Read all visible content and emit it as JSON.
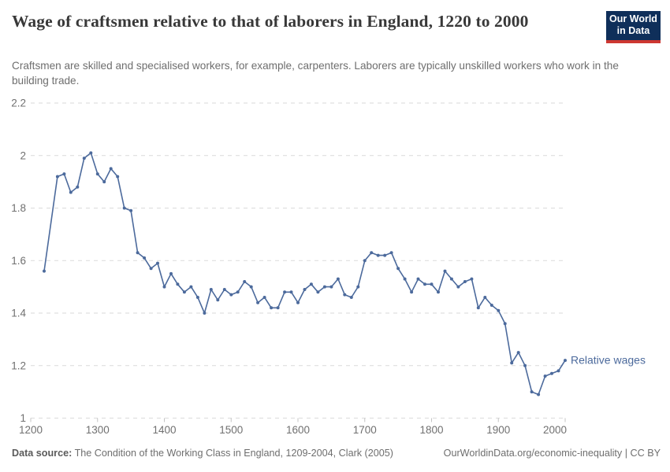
{
  "header": {
    "title": "Wage of craftsmen relative to that of laborers in England, 1220 to 2000",
    "subtitle": "Craftsmen are skilled and specialised workers, for example, carpenters. Laborers are typically unskilled workers who work in the building trade.",
    "logo": {
      "line1": "Our World",
      "line2": "in Data"
    }
  },
  "chart_data": {
    "type": "line",
    "title": "Wage of craftsmen relative to that of laborers in England, 1220 to 2000",
    "series": [
      {
        "name": "Relative wages",
        "x": [
          1220,
          1240,
          1250,
          1260,
          1270,
          1280,
          1290,
          1300,
          1310,
          1320,
          1330,
          1340,
          1350,
          1360,
          1370,
          1380,
          1390,
          1400,
          1410,
          1420,
          1430,
          1440,
          1450,
          1460,
          1470,
          1480,
          1490,
          1500,
          1510,
          1520,
          1530,
          1540,
          1550,
          1560,
          1570,
          1580,
          1590,
          1600,
          1610,
          1620,
          1630,
          1640,
          1650,
          1660,
          1670,
          1680,
          1690,
          1700,
          1710,
          1720,
          1730,
          1740,
          1750,
          1760,
          1770,
          1780,
          1790,
          1800,
          1810,
          1820,
          1830,
          1840,
          1850,
          1860,
          1870,
          1880,
          1890,
          1900,
          1910,
          1920,
          1930,
          1940,
          1950,
          1960,
          1970,
          1980,
          1990,
          2000
        ],
        "values": [
          1.56,
          1.92,
          1.93,
          1.86,
          1.88,
          1.99,
          2.01,
          1.93,
          1.9,
          1.95,
          1.92,
          1.8,
          1.79,
          1.63,
          1.61,
          1.57,
          1.59,
          1.5,
          1.55,
          1.51,
          1.48,
          1.5,
          1.46,
          1.4,
          1.49,
          1.45,
          1.49,
          1.47,
          1.48,
          1.52,
          1.5,
          1.44,
          1.46,
          1.42,
          1.42,
          1.48,
          1.48,
          1.44,
          1.49,
          1.51,
          1.48,
          1.5,
          1.5,
          1.53,
          1.47,
          1.46,
          1.5,
          1.6,
          1.63,
          1.62,
          1.62,
          1.63,
          1.57,
          1.53,
          1.48,
          1.53,
          1.51,
          1.51,
          1.48,
          1.56,
          1.53,
          1.5,
          1.52,
          1.53,
          1.42,
          1.46,
          1.43,
          1.41,
          1.36,
          1.21,
          1.25,
          1.2,
          1.1,
          1.09,
          1.16,
          1.17,
          1.18,
          1.22
        ]
      }
    ],
    "xlabel": "",
    "ylabel": "",
    "xlim": [
      1200,
      2000
    ],
    "ylim": [
      1,
      2.2
    ],
    "x_ticks": [
      1200,
      1300,
      1400,
      1500,
      1600,
      1700,
      1800,
      1900,
      2000
    ],
    "y_ticks": [
      1,
      1.2,
      1.4,
      1.6,
      1.8,
      2,
      2.2
    ],
    "grid": "horizontal-dashed",
    "legend_position": "end-of-line-label",
    "line_color": "#4C6A9C",
    "end_label": "Relative wages"
  },
  "footer": {
    "datasource_label": "Data source:",
    "datasource_text": " The Condition of the Working Class in England, 1209-2004, Clark (2005)",
    "url_text": "OurWorldinData.org/economic-inequality | CC BY"
  },
  "colors": {
    "line": "#4C6A9C",
    "grid": "#dadada",
    "tick_text": "#707070",
    "axis_tick": "#c4c4c4",
    "logo_bg": "#0f2f5a",
    "logo_stripe": "#cd3731"
  }
}
